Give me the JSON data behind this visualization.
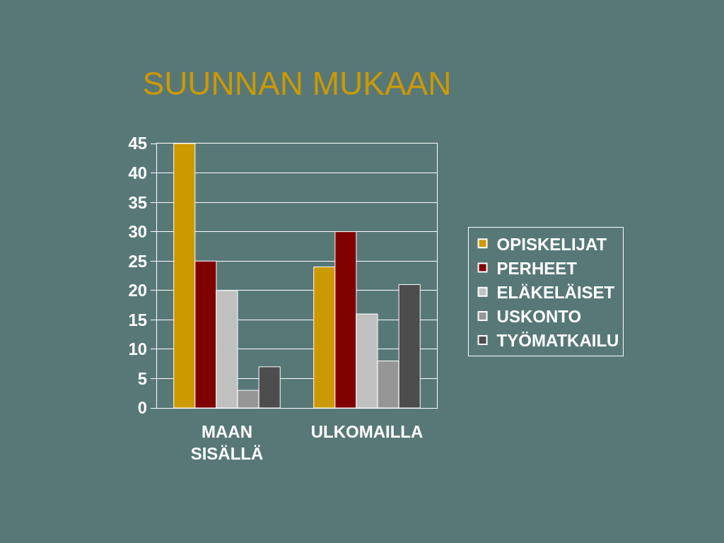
{
  "chart_data": {
    "type": "bar",
    "title": "SUUNNAN MUKAAN",
    "categories": [
      "MAAN SISÄLLÄ",
      "ULKOMAILLA"
    ],
    "series": [
      {
        "name": "OPISKELIJAT",
        "color": "#cc9900",
        "values": [
          45,
          24
        ]
      },
      {
        "name": "PERHEET",
        "color": "#800000",
        "values": [
          25,
          30
        ]
      },
      {
        "name": "ELÄKELÄISET",
        "color": "#c0c0c0",
        "values": [
          20,
          16
        ]
      },
      {
        "name": "USKONTO",
        "color": "#969696",
        "values": [
          3,
          8
        ]
      },
      {
        "name": "TYÖMATKAILU",
        "color": "#4d4d4d",
        "values": [
          7,
          21
        ]
      }
    ],
    "ylim": [
      0,
      45
    ],
    "yticks": [
      0,
      5,
      10,
      15,
      20,
      25,
      30,
      35,
      40,
      45
    ],
    "grid": "y",
    "legend": "right"
  }
}
